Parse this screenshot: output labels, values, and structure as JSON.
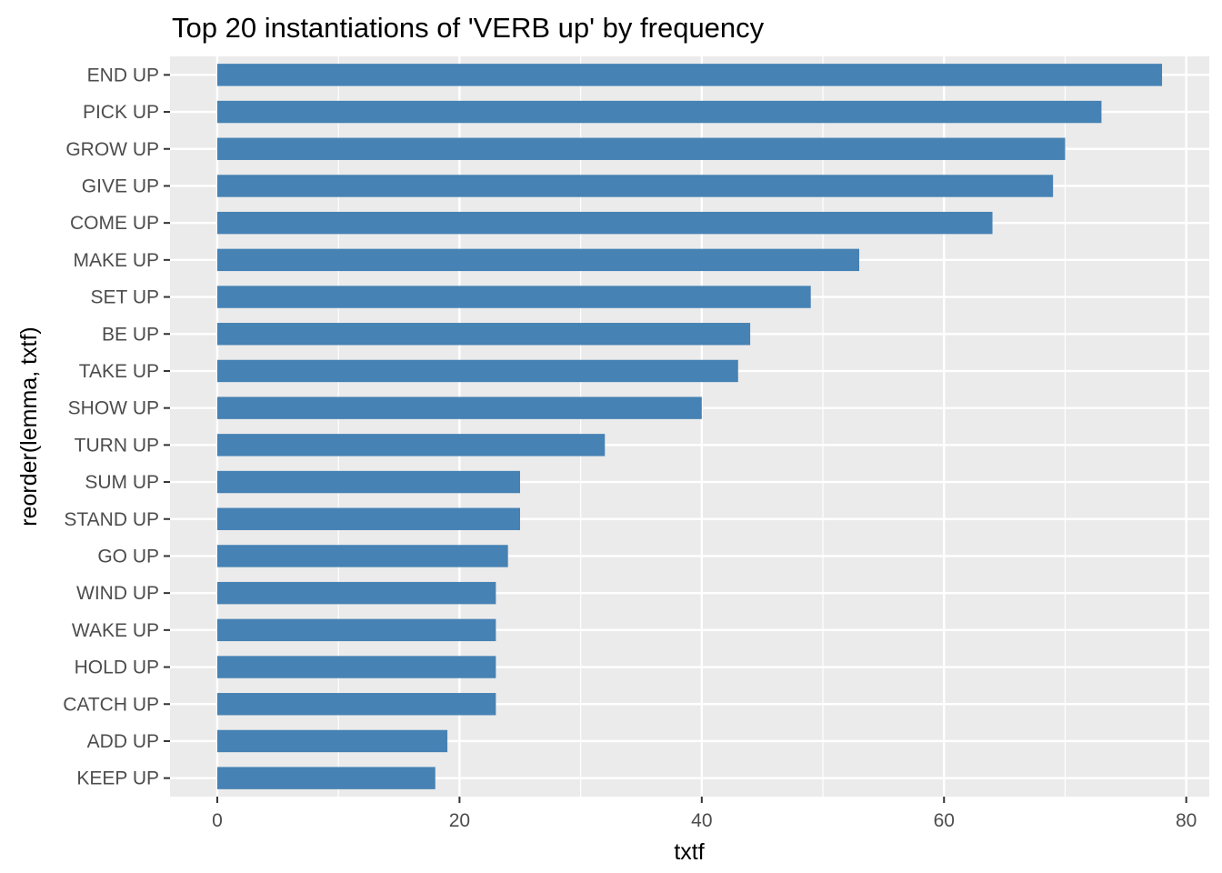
{
  "chart_data": {
    "type": "bar",
    "orientation": "horizontal",
    "title": "Top 20 instantiations of 'VERB up' by frequency",
    "xlabel": "txtf",
    "ylabel": "reorder(lemma, txtf)",
    "categories": [
      "END UP",
      "PICK UP",
      "GROW UP",
      "GIVE UP",
      "COME UP",
      "MAKE UP",
      "SET UP",
      "BE UP",
      "TAKE UP",
      "SHOW UP",
      "TURN UP",
      "SUM UP",
      "STAND UP",
      "GO UP",
      "WIND UP",
      "WAKE UP",
      "HOLD UP",
      "CATCH UP",
      "ADD UP",
      "KEEP UP"
    ],
    "values": [
      78,
      73,
      70,
      69,
      64,
      53,
      49,
      44,
      43,
      40,
      32,
      25,
      25,
      24,
      23,
      23,
      23,
      23,
      19,
      18
    ],
    "xlim": [
      -3.9,
      81.9
    ],
    "xticks": [
      0,
      20,
      40,
      60,
      80
    ],
    "grid": true,
    "bar_color": "#4682B4",
    "panel_color": "#EBEBEB",
    "grid_color": "#FFFFFF"
  }
}
